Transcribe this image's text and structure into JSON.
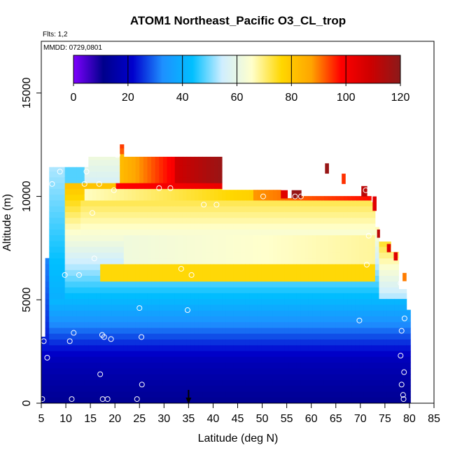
{
  "chart_data": {
    "type": "heatmap",
    "title": "ATOM1 Northeast_Pacific O3_CL_trop",
    "flights_label": "Flts: 1,2",
    "dates_label": "MMDD: 0729,0801",
    "xlabel": "Latitude (deg N)",
    "ylabel": "Altitude (m)",
    "xlim": [
      5,
      85
    ],
    "ylim": [
      0,
      17500
    ],
    "xticks": [
      5,
      10,
      15,
      20,
      25,
      30,
      35,
      40,
      45,
      50,
      55,
      60,
      65,
      70,
      75,
      80,
      85
    ],
    "yticks": [
      0,
      5000,
      10000,
      15000
    ],
    "colorbar": {
      "range": [
        0,
        120
      ],
      "ticks": [
        0,
        20,
        40,
        60,
        80,
        100,
        120
      ],
      "colors": [
        "#7f00ff",
        "#00008b",
        "#0000cd",
        "#1e90ff",
        "#00bfff",
        "#cfeeff",
        "#ffffcc",
        "#ffd700",
        "#ffa500",
        "#ff0000",
        "#cd0000",
        "#8b1a1a"
      ]
    },
    "marker_latitude": 35,
    "sample_points": [
      [
        5.2,
        200
      ],
      [
        6.2,
        2200
      ],
      [
        5.5,
        3000
      ],
      [
        10.8,
        3000
      ],
      [
        11.6,
        3400
      ],
      [
        17.4,
        3300
      ],
      [
        17.8,
        3200
      ],
      [
        19.2,
        3100
      ],
      [
        17.0,
        1400
      ],
      [
        25.5,
        900
      ],
      [
        24.5,
        200
      ],
      [
        11.2,
        200
      ],
      [
        17.5,
        200
      ],
      [
        18.5,
        200
      ],
      [
        25.0,
        4600
      ],
      [
        25.4,
        3200
      ],
      [
        34.8,
        4500
      ],
      [
        33.5,
        6500
      ],
      [
        35.6,
        6200
      ],
      [
        9.8,
        6200
      ],
      [
        12.7,
        6200
      ],
      [
        15.8,
        7000
      ],
      [
        7.2,
        10600
      ],
      [
        8.8,
        11200
      ],
      [
        13.8,
        10600
      ],
      [
        14.2,
        11200
      ],
      [
        16.8,
        10600
      ],
      [
        19.8,
        10300
      ],
      [
        15.4,
        9200
      ],
      [
        20.5,
        12000
      ],
      [
        29.0,
        10400
      ],
      [
        31.3,
        10400
      ],
      [
        38.1,
        9600
      ],
      [
        40.7,
        9600
      ],
      [
        50.2,
        10000
      ],
      [
        56.7,
        10000
      ],
      [
        57.9,
        10000
      ],
      [
        71.1,
        10300
      ],
      [
        71.7,
        8100
      ],
      [
        71.3,
        6700
      ],
      [
        69.8,
        4000
      ],
      [
        78.2,
        5800
      ],
      [
        79.0,
        4100
      ],
      [
        78.4,
        3500
      ],
      [
        78.2,
        2300
      ],
      [
        78.9,
        1500
      ],
      [
        78.4,
        900
      ],
      [
        78.7,
        400
      ],
      [
        78.8,
        200
      ]
    ]
  }
}
